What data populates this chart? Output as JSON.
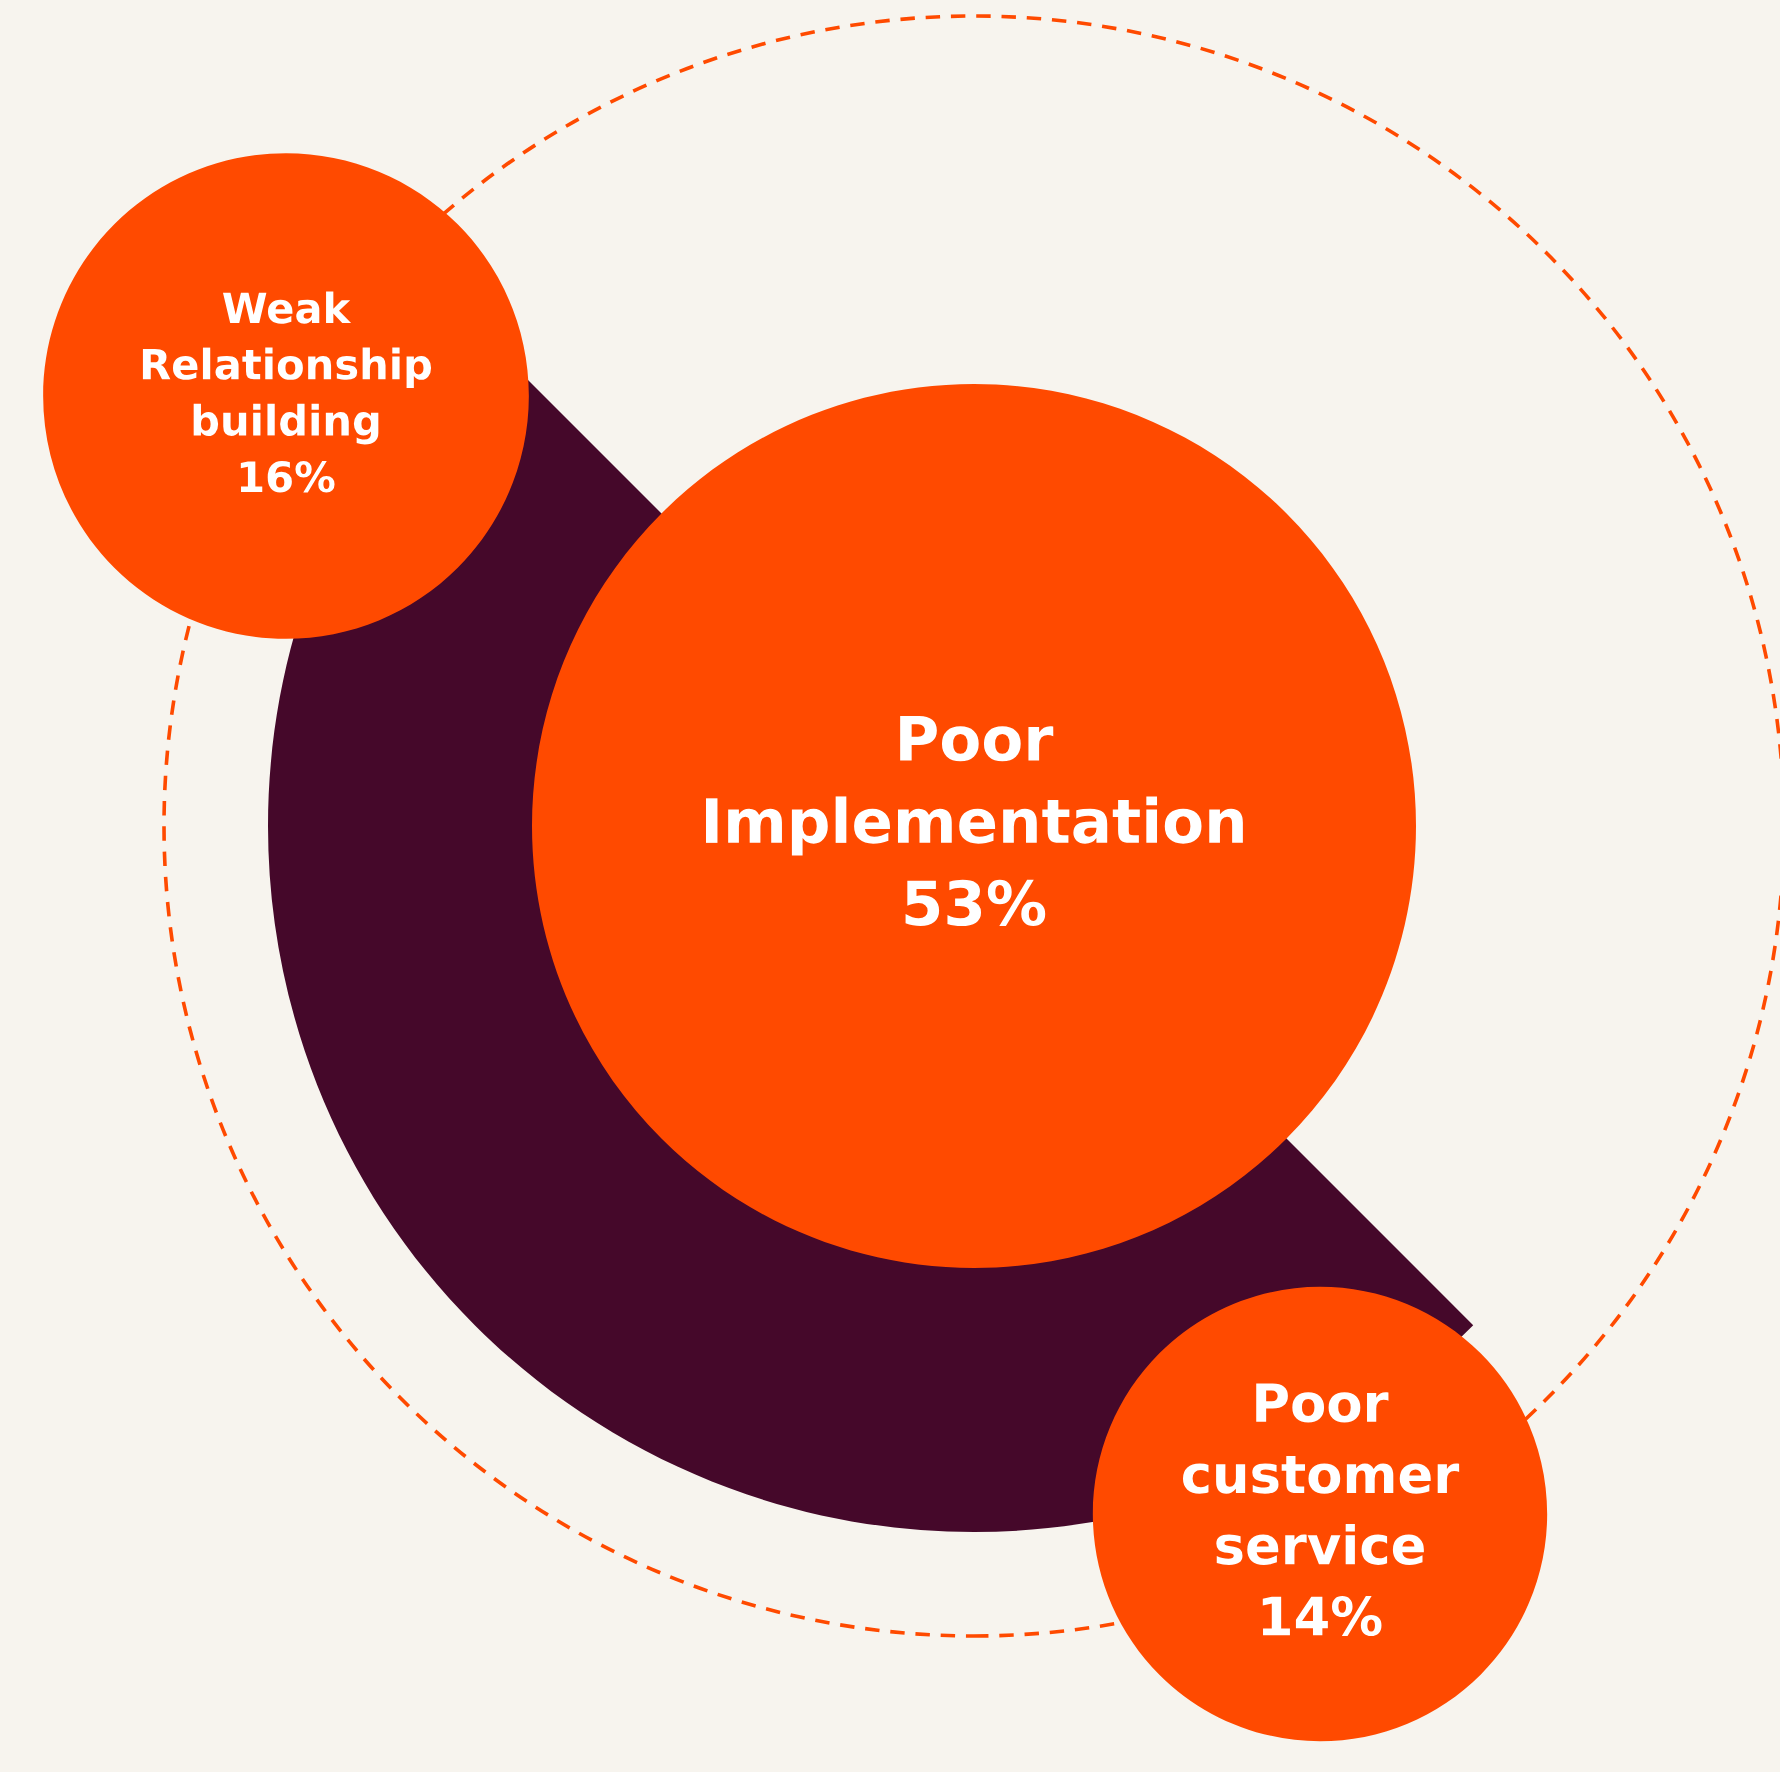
{
  "chart_data": {
    "type": "other",
    "categories": [
      "Poor\nImplementation",
      "Weak\nRelationship\nbuilding",
      "Poor\ncustomer\nservice"
    ],
    "values": [
      53,
      16,
      14
    ],
    "value_labels": [
      "53%",
      "16%",
      "14%"
    ],
    "colors": [
      "#ff4a00",
      "#ff4a00",
      "#ff4a00"
    ]
  }
}
